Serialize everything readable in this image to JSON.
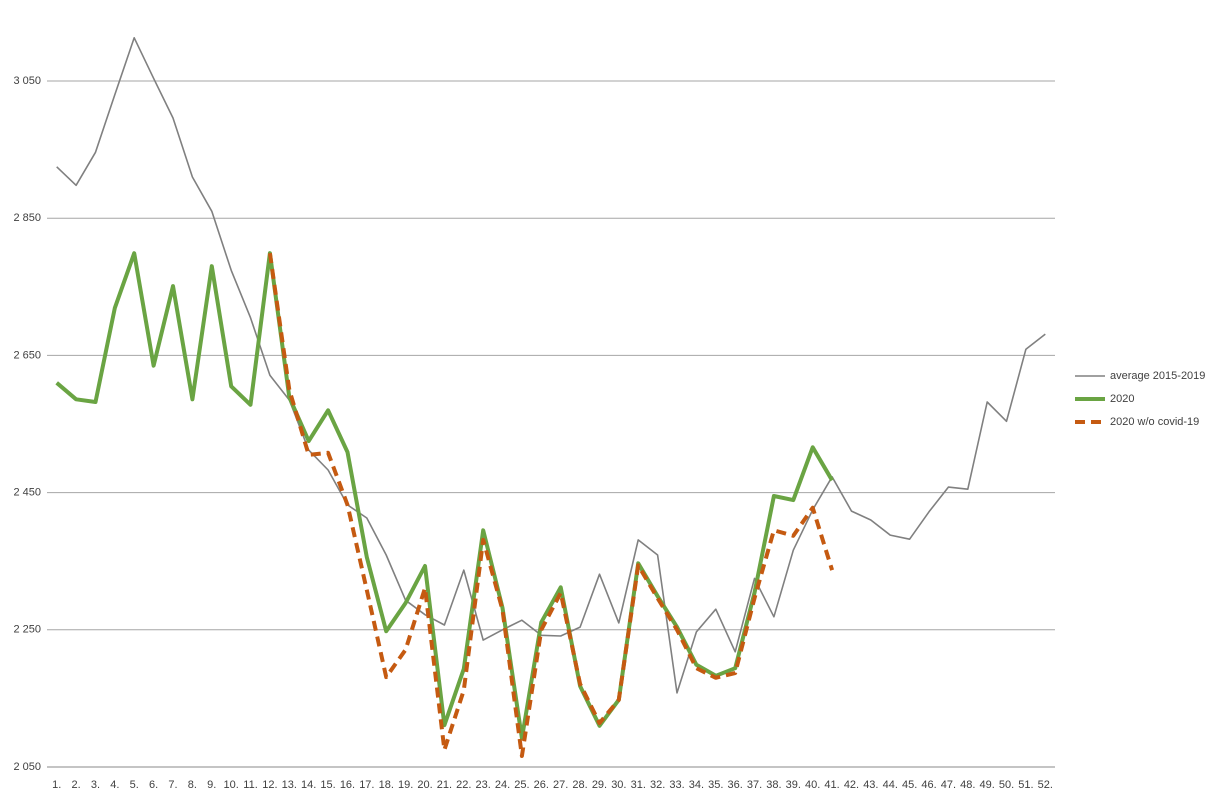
{
  "chart_data": {
    "type": "line",
    "categories": [
      "1.",
      "2.",
      "3.",
      "4.",
      "5.",
      "6.",
      "7.",
      "8.",
      "9.",
      "10.",
      "11.",
      "12.",
      "13.",
      "14.",
      "15.",
      "16.",
      "17.",
      "18.",
      "19.",
      "20.",
      "21.",
      "22.",
      "23.",
      "24.",
      "25.",
      "26.",
      "27.",
      "28.",
      "29.",
      "30.",
      "31.",
      "32.",
      "33.",
      "34.",
      "35.",
      "36.",
      "37.",
      "38.",
      "39.",
      "40.",
      "41.",
      "42.",
      "43.",
      "44.",
      "45.",
      "46.",
      "47.",
      "48.",
      "49.",
      "50.",
      "51.",
      "52."
    ],
    "series": [
      {
        "name": "average 2015-2019",
        "color": "#808080",
        "width": 1.6,
        "dashed": false,
        "values": [
          2925,
          2898,
          2946,
          3030,
          3113,
          3054,
          2996,
          2910,
          2860,
          2774,
          2705,
          2621,
          2585,
          2512,
          2483,
          2432,
          2413,
          2359,
          2293,
          2272,
          2257,
          2337,
          2235,
          2250,
          2264,
          2242,
          2241,
          2254,
          2331,
          2260,
          2381,
          2359,
          2158,
          2247,
          2280,
          2218,
          2325,
          2269,
          2366,
          2425,
          2473,
          2423,
          2410,
          2388,
          2382,
          2422,
          2458,
          2455,
          2582,
          2554,
          2659,
          2681
        ]
      },
      {
        "name": "2020",
        "color": "#6aa443",
        "width": 4,
        "dashed": false,
        "values": [
          2610,
          2586,
          2582,
          2719,
          2799,
          2635,
          2751,
          2586,
          2780,
          2605,
          2578,
          2799,
          2589,
          2525,
          2570,
          2509,
          2356,
          2248,
          2289,
          2343,
          2111,
          2193,
          2395,
          2282,
          2092,
          2261,
          2312,
          2168,
          2110,
          2148,
          2347,
          2299,
          2254,
          2199,
          2183,
          2194,
          2304,
          2445,
          2439,
          2516,
          2468,
          null,
          null,
          null,
          null,
          null,
          null,
          null,
          null,
          null,
          null,
          null
        ]
      },
      {
        "name": "2020 w/o covid-19",
        "color": "#c55a11",
        "width": 4,
        "dashed": true,
        "values": [
          null,
          null,
          null,
          null,
          null,
          null,
          null,
          null,
          null,
          null,
          null,
          2799,
          2600,
          2505,
          2508,
          2432,
          2308,
          2181,
          2221,
          2311,
          2075,
          2162,
          2381,
          2279,
          2066,
          2250,
          2304,
          2171,
          2114,
          2148,
          2344,
          2296,
          2250,
          2194,
          2180,
          2187,
          2296,
          2395,
          2387,
          2428,
          2337,
          null,
          null,
          null,
          null,
          null,
          null,
          null,
          null,
          null,
          null,
          null
        ]
      }
    ],
    "ylim": [
      2050,
      3150
    ],
    "yticks": [
      {
        "value": 2050,
        "label": "2 050"
      },
      {
        "value": 2250,
        "label": "2 250"
      },
      {
        "value": 2450,
        "label": "2 450"
      },
      {
        "value": 2650,
        "label": "2 650"
      },
      {
        "value": 2850,
        "label": "2 850"
      },
      {
        "value": 3050,
        "label": "3 050"
      }
    ],
    "grid": true,
    "legend": "right"
  }
}
